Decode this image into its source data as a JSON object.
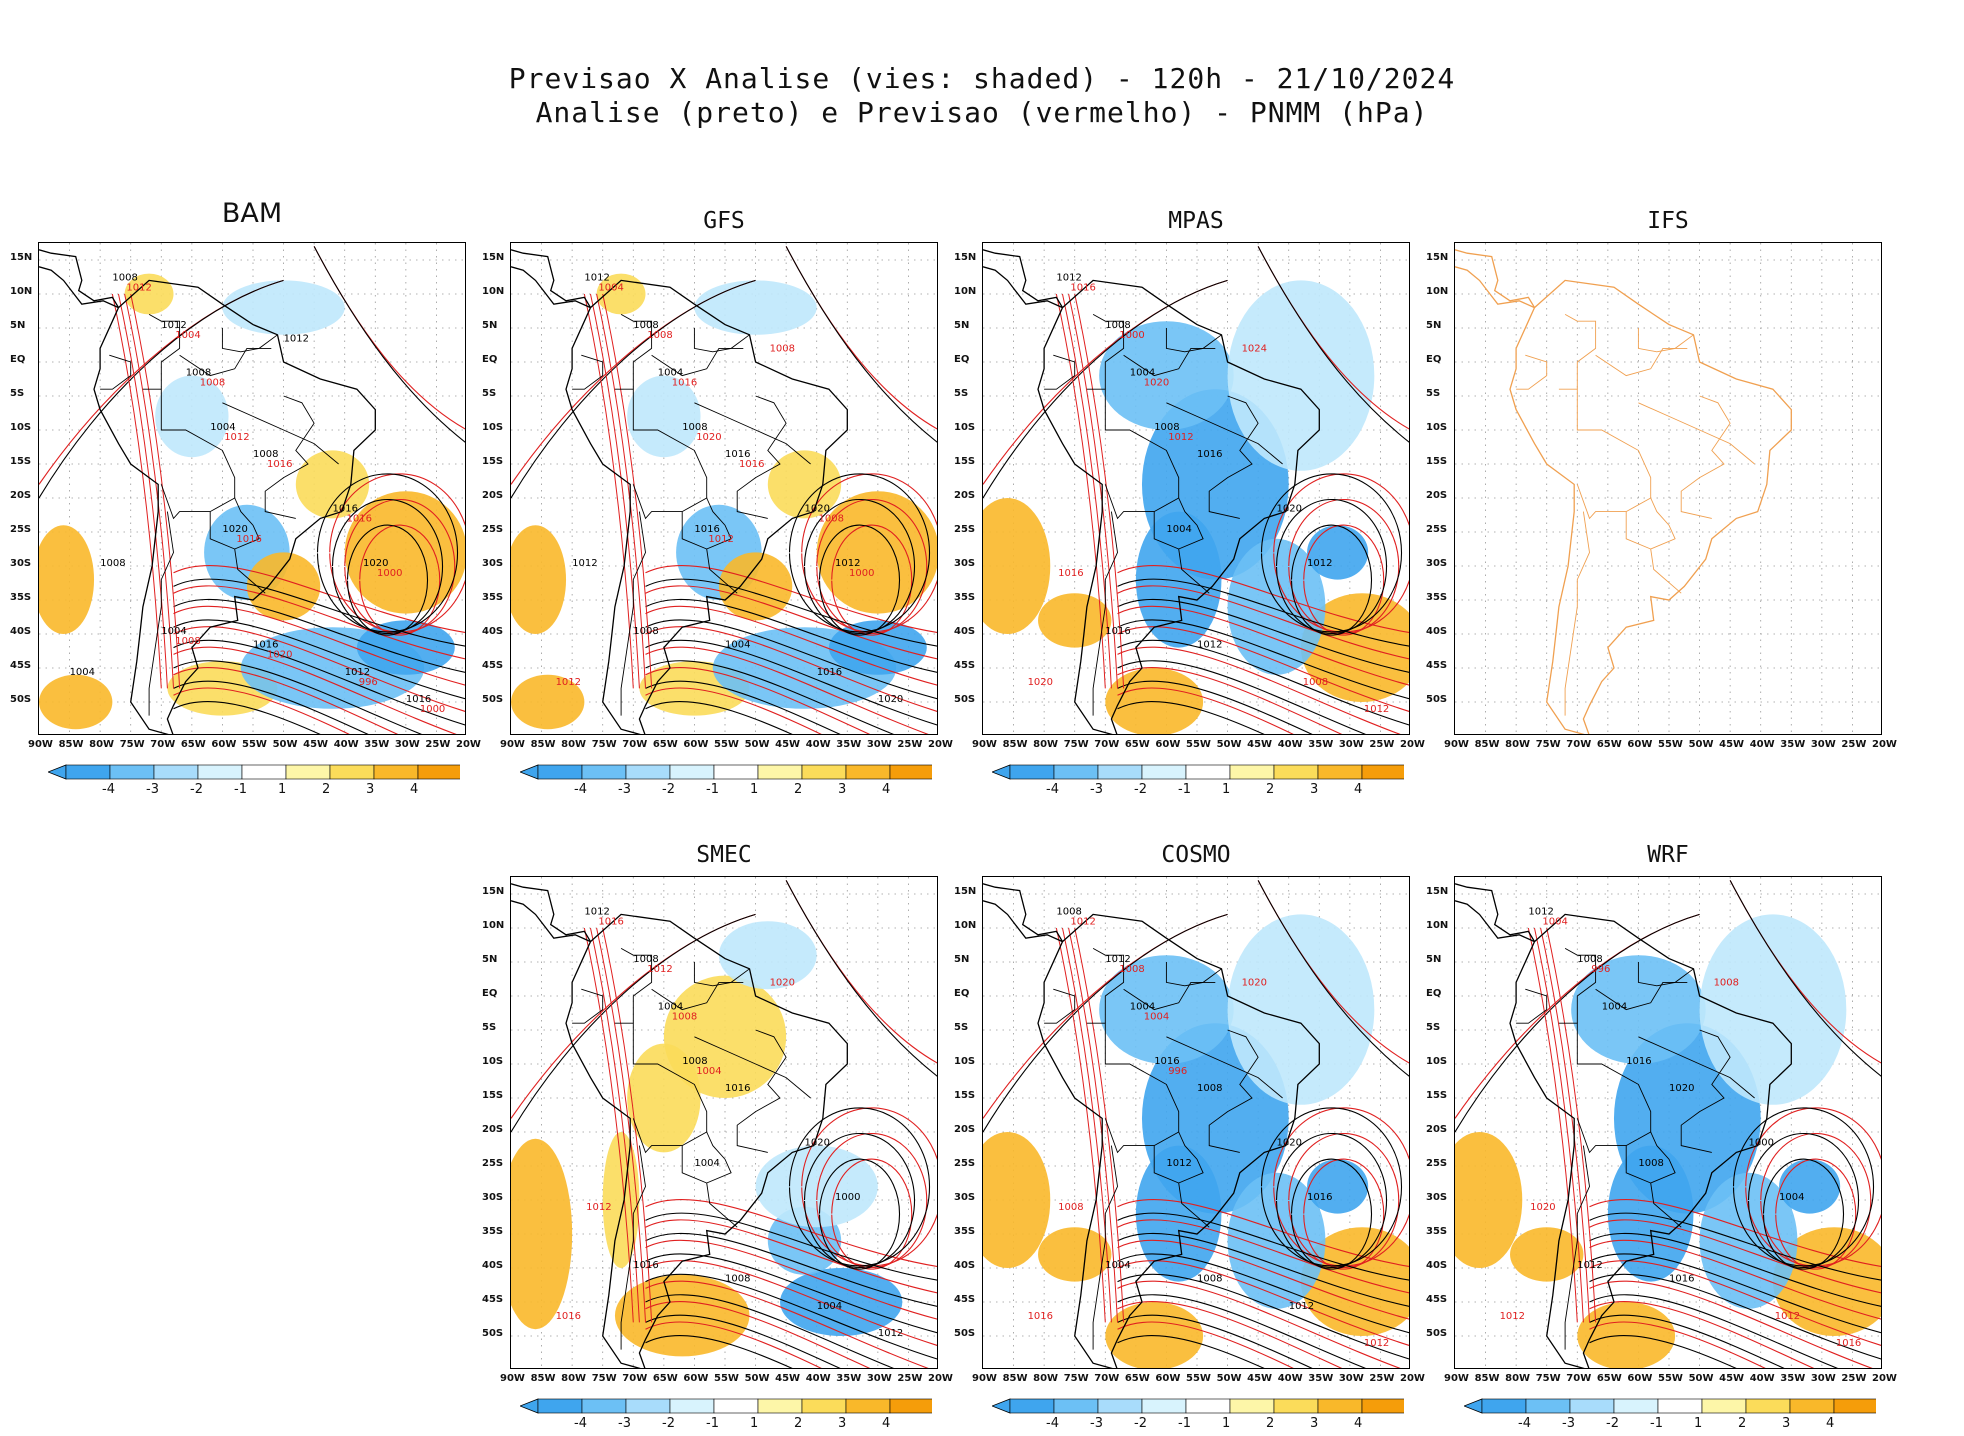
{
  "title": {
    "line1": "Previsao X Analise (vies: shaded) - 120h - 21/10/2024",
    "line2": "Analise (preto) e Previsao (vermelho) - PNMM (hPa)"
  },
  "lat_labels": [
    "15N",
    "10N",
    "5N",
    "EQ",
    "5S",
    "10S",
    "15S",
    "20S",
    "25S",
    "30S",
    "35S",
    "40S",
    "45S",
    "50S"
  ],
  "lon_labels": [
    "90W",
    "85W",
    "80W",
    "75W",
    "70W",
    "65W",
    "60W",
    "55W",
    "50W",
    "45W",
    "40W",
    "35W",
    "30W",
    "25W",
    "20W"
  ],
  "colorbar": {
    "labels": [
      "-4",
      "-3",
      "-2",
      "-1",
      "1",
      "2",
      "3",
      "4"
    ],
    "colors": [
      "#3fa5ee",
      "#6cc0f5",
      "#a8dcfb",
      "#d8f3fd",
      "#ffffff",
      "#fdf6a8",
      "#fbdc5a",
      "#f9b82a",
      "#f59d0a"
    ]
  },
  "colors": {
    "analysis": "#000000",
    "forecast": "#e02020",
    "ifs_coast": "#f0a050",
    "neg": "#5ab0f0",
    "pos": "#f8b830"
  },
  "panels": [
    {
      "name": "BAM",
      "title": "BAM",
      "big": true,
      "bias": "mixed",
      "labels_black": [
        "1008",
        "1012",
        "1008",
        "1004",
        "1008",
        "1016",
        "1020",
        "1020",
        "1004",
        "1016",
        "1012",
        "1016",
        "1008",
        "1004",
        "1012"
      ],
      "labels_red": [
        "1012",
        "1004",
        "1008",
        "1012",
        "1016",
        "1016",
        "1000",
        "1016",
        "1008",
        "1020",
        "996",
        "1000"
      ]
    },
    {
      "name": "GFS",
      "title": "GFS",
      "big": false,
      "bias": "mixed",
      "labels_black": [
        "1012",
        "1008",
        "1004",
        "1008",
        "1016",
        "1020",
        "1012",
        "1016",
        "1008",
        "1004",
        "1016",
        "1020",
        "1012"
      ],
      "labels_red": [
        "1012",
        "1008",
        "1004",
        "1008",
        "1016",
        "1020",
        "1016",
        "1008",
        "1000",
        "1012"
      ]
    },
    {
      "name": "MPAS",
      "title": "MPAS",
      "big": false,
      "bias": "neg",
      "labels_black": [
        "1012",
        "1008",
        "1004",
        "1008",
        "1016",
        "1020",
        "1012",
        "1004",
        "1016",
        "1012"
      ],
      "labels_red": [
        "1008",
        "1012",
        "1016",
        "1020",
        "1024",
        "1016",
        "1000",
        "1020",
        "1012"
      ]
    },
    {
      "name": "IFS",
      "title": "IFS",
      "big": false,
      "bias": "none",
      "labels_black": [],
      "labels_red": []
    },
    {
      "name": "SMEC",
      "title": "SMEC",
      "big": false,
      "bias": "pos",
      "labels_black": [
        "1012",
        "1008",
        "1004",
        "1008",
        "1016",
        "1020",
        "1000",
        "1004",
        "1016",
        "1008",
        "1004",
        "1012"
      ],
      "labels_red": [
        "1012",
        "1016",
        "1020",
        "1016",
        "1012",
        "1008",
        "1004"
      ]
    },
    {
      "name": "COSMO",
      "title": "COSMO",
      "big": false,
      "bias": "neg",
      "labels_black": [
        "1008",
        "1012",
        "1004",
        "1016",
        "1008",
        "1020",
        "1016",
        "1012",
        "1004",
        "1008",
        "1012"
      ],
      "labels_red": [
        "1012",
        "1008",
        "1016",
        "1020",
        "1012",
        "1008",
        "1004",
        "996"
      ]
    },
    {
      "name": "WRF",
      "title": "WRF",
      "big": false,
      "bias": "neg",
      "labels_black": [
        "1012",
        "1008",
        "1004",
        "1016",
        "1020",
        "1000",
        "1004",
        "1008",
        "1012",
        "1016"
      ],
      "labels_red": [
        "1012",
        "1016",
        "1020",
        "1012",
        "1008",
        "1004",
        "996"
      ]
    }
  ]
}
